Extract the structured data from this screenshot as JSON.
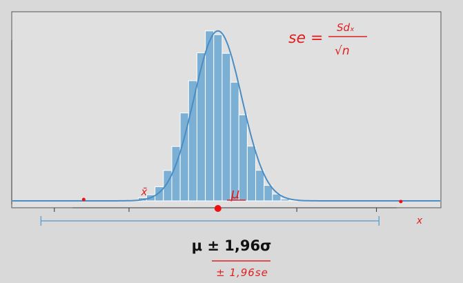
{
  "chart_data": {
    "type": "bar",
    "title": "",
    "xlabel": "",
    "ylabel": "",
    "bins": [
      {
        "x0": -6,
        "x1": -5,
        "value": 0.001
      },
      {
        "x0": -5,
        "x1": -4,
        "value": 0.004
      },
      {
        "x0": -4,
        "x1": -3,
        "value": 0.018
      },
      {
        "x0": -3,
        "x1": -2,
        "value": 0.036
      },
      {
        "x0": -2,
        "x1": -1,
        "value": 0.083
      },
      {
        "x0": -1,
        "x1": 0,
        "value": 0.179
      },
      {
        "x0": 0,
        "x1": 1,
        "value": 0.32
      },
      {
        "x0": 1,
        "x1": 2,
        "value": 0.517
      },
      {
        "x0": 2,
        "x1": 3,
        "value": 0.707
      },
      {
        "x0": 3,
        "x1": 4,
        "value": 0.871
      },
      {
        "x0": 4,
        "x1": 5,
        "value": 1.0
      },
      {
        "x0": 5,
        "x1": 6,
        "value": 0.978
      },
      {
        "x0": 6,
        "x1": 7,
        "value": 0.868
      },
      {
        "x0": 7,
        "x1": 8,
        "value": 0.698
      },
      {
        "x0": 8,
        "x1": 9,
        "value": 0.506
      },
      {
        "x0": 9,
        "x1": 10,
        "value": 0.322
      },
      {
        "x0": 10,
        "x1": 11,
        "value": 0.18
      },
      {
        "x0": 11,
        "x1": 12,
        "value": 0.091
      },
      {
        "x0": 12,
        "x1": 13,
        "value": 0.04
      },
      {
        "x0": 13,
        "x1": 14,
        "value": 0.011
      },
      {
        "x0": 14,
        "x1": 15,
        "value": 0.003
      }
    ],
    "curve": {
      "mean": 5.5,
      "sd": 2.85,
      "peak": 1.0
    },
    "xlim": [
      -19,
      32
    ],
    "ylim": [
      0,
      1.06
    ],
    "confidence_interval": [
      -15.6,
      24.7
    ],
    "points": {
      "mu": 5.5,
      "x_bar": -10.5,
      "x": 27.3
    }
  },
  "annotations": {
    "se_lhs": "se =",
    "se_num": "Sdₓ",
    "se_den": "√n",
    "mu_label": "μ",
    "xbar_label": "x̄",
    "x_label": "x",
    "formula_main": "μ  ± 1,96σ",
    "formula_alt": "± 1,96se"
  },
  "colors": {
    "bar": "#7bafd4",
    "bar_edge": "#ffffff",
    "curve": "#4a8cc4",
    "axis": "#333333",
    "annotation": "#e02020",
    "background": "#d9d9d9",
    "plot_bg": "#e0e0e0"
  }
}
